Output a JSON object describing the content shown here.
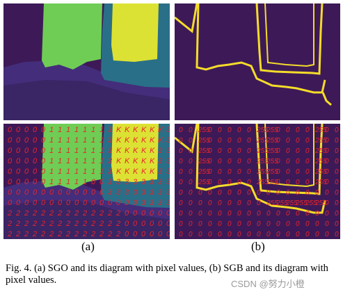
{
  "figure": {
    "subfigure_a_label": "(a)",
    "subfigure_b_label": "(b)",
    "caption": "Fig. 4. (a) SGO and its diagram with pixel values, (b) SGB and its diagram with pixel values.",
    "watermark": "CSDN @努力小橙",
    "sgo_values": [
      "0",
      "1",
      "2",
      "3",
      "K"
    ],
    "sgb_values": [
      "0",
      "255"
    ],
    "colors": {
      "background_dark": "#3d1a57",
      "band_purple": "#442d7a",
      "region_green": "#6fcd55",
      "region_yellow": "#dce233",
      "region_teal": "#2a6f88",
      "region_navy": "#2f3e85",
      "boundary_yellow": "#f5dc2a",
      "value_text": "#e8242b"
    }
  }
}
